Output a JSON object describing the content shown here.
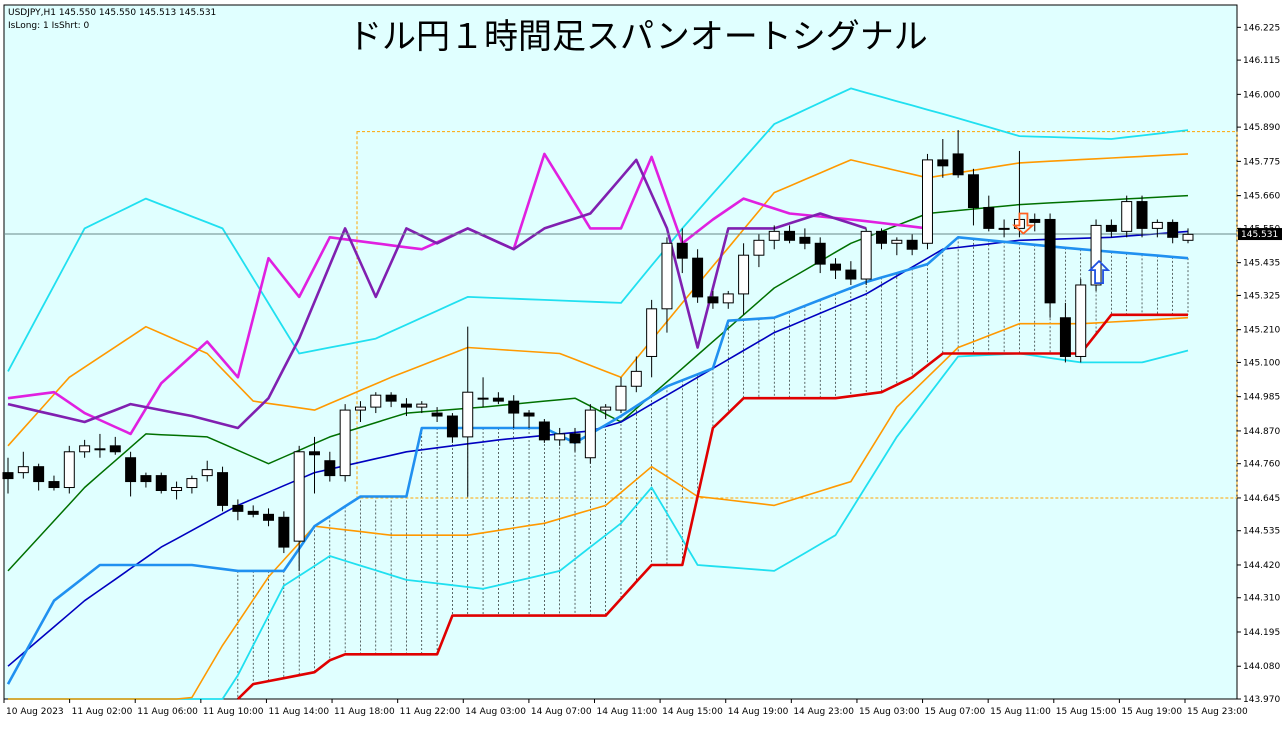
{
  "header": {
    "symbol_line": "USDJPY,H1  145.550 145.550 145.513 145.531",
    "indicator_line": "IsLong: 1 IsShrt: 0"
  },
  "title": "ドル円１時間足スパンオートシグナル",
  "colors": {
    "background": "#e0ffff",
    "candle_up": "#ffffff",
    "candle_down": "#000000",
    "rsi_a": "#e020e0",
    "rsi_b": "#8020b0",
    "bb_outer": "#20e0f0",
    "bb_mid": "#ff9900",
    "ma_green": "#007000",
    "ma_blue": "#0000c0",
    "line_light_blue": "#2090f0",
    "stop_red": "#e00000",
    "box_orange": "#ffa500",
    "arrow_down": "#ff6020",
    "arrow_up": "#2050e0"
  },
  "chart_data": {
    "type": "candlestick",
    "symbol": "USDJPY",
    "timeframe": "H1",
    "current_price": "145.531",
    "current_price_value": 145.531,
    "ylim": [
      143.97,
      146.3
    ],
    "y_ticks": [
      "146.225",
      "146.115",
      "146.000",
      "145.890",
      "145.775",
      "145.660",
      "145.550",
      "145.435",
      "145.325",
      "145.210",
      "145.100",
      "144.985",
      "144.870",
      "144.760",
      "144.645",
      "144.535",
      "144.420",
      "144.310",
      "144.195",
      "144.080",
      "143.970"
    ],
    "x_ticks": [
      "10 Aug 2023",
      "11 Aug 02:00",
      "11 Aug 06:00",
      "11 Aug 10:00",
      "11 Aug 14:00",
      "11 Aug 18:00",
      "11 Aug 22:00",
      "14 Aug 03:00",
      "14 Aug 07:00",
      "14 Aug 11:00",
      "14 Aug 15:00",
      "14 Aug 19:00",
      "14 Aug 23:00",
      "15 Aug 03:00",
      "15 Aug 07:00",
      "15 Aug 11:00",
      "15 Aug 15:00",
      "15 Aug 19:00",
      "15 Aug 23:00"
    ],
    "candles": [
      [
        144.73,
        144.78,
        144.66,
        144.71
      ],
      [
        144.73,
        144.8,
        144.71,
        144.75
      ],
      [
        144.75,
        144.76,
        144.67,
        144.7
      ],
      [
        144.7,
        144.72,
        144.67,
        144.68
      ],
      [
        144.68,
        144.82,
        144.66,
        144.8
      ],
      [
        144.8,
        144.84,
        144.78,
        144.82
      ],
      [
        144.81,
        144.86,
        144.78,
        144.81
      ],
      [
        144.82,
        144.85,
        144.79,
        144.8
      ],
      [
        144.78,
        144.8,
        144.65,
        144.7
      ],
      [
        144.72,
        144.73,
        144.68,
        144.7
      ],
      [
        144.72,
        144.73,
        144.66,
        144.67
      ],
      [
        144.67,
        144.7,
        144.64,
        144.68
      ],
      [
        144.68,
        144.72,
        144.66,
        144.71
      ],
      [
        144.72,
        144.77,
        144.7,
        144.74
      ],
      [
        144.73,
        144.75,
        144.6,
        144.62
      ],
      [
        144.62,
        144.64,
        144.57,
        144.6
      ],
      [
        144.6,
        144.62,
        144.58,
        144.59
      ],
      [
        144.59,
        144.61,
        144.55,
        144.57
      ],
      [
        144.58,
        144.6,
        144.46,
        144.48
      ],
      [
        144.5,
        144.82,
        144.4,
        144.8
      ],
      [
        144.8,
        144.85,
        144.66,
        144.79
      ],
      [
        144.77,
        144.8,
        144.7,
        144.72
      ],
      [
        144.72,
        144.96,
        144.7,
        144.94
      ],
      [
        144.94,
        144.97,
        144.9,
        144.95
      ],
      [
        144.95,
        145.0,
        144.93,
        144.99
      ],
      [
        144.99,
        145.0,
        144.95,
        144.97
      ],
      [
        144.96,
        144.98,
        144.92,
        144.95
      ],
      [
        144.95,
        144.97,
        144.93,
        144.96
      ],
      [
        144.93,
        144.95,
        144.9,
        144.92
      ],
      [
        144.92,
        144.93,
        144.83,
        144.85
      ],
      [
        144.85,
        145.22,
        144.65,
        145.0
      ],
      [
        144.98,
        145.05,
        144.95,
        144.98
      ],
      [
        144.98,
        145.0,
        144.96,
        144.97
      ],
      [
        144.97,
        144.99,
        144.88,
        144.93
      ],
      [
        144.93,
        144.94,
        144.88,
        144.92
      ],
      [
        144.9,
        144.91,
        144.83,
        144.84
      ],
      [
        144.84,
        144.88,
        144.82,
        144.86
      ],
      [
        144.86,
        144.88,
        144.8,
        144.83
      ],
      [
        144.78,
        144.96,
        144.76,
        144.94
      ],
      [
        144.94,
        144.96,
        144.91,
        144.95
      ],
      [
        144.94,
        145.05,
        144.93,
        145.02
      ],
      [
        145.02,
        145.12,
        145.0,
        145.07
      ],
      [
        145.12,
        145.31,
        145.05,
        145.28
      ],
      [
        145.28,
        145.52,
        145.2,
        145.5
      ],
      [
        145.5,
        145.55,
        145.4,
        145.45
      ],
      [
        145.45,
        145.48,
        145.3,
        145.32
      ],
      [
        145.32,
        145.34,
        145.28,
        145.3
      ],
      [
        145.3,
        145.34,
        145.28,
        145.33
      ],
      [
        145.33,
        145.5,
        145.26,
        145.46
      ],
      [
        145.46,
        145.53,
        145.42,
        145.51
      ],
      [
        145.51,
        145.56,
        145.48,
        145.54
      ],
      [
        145.54,
        145.56,
        145.5,
        145.51
      ],
      [
        145.52,
        145.55,
        145.48,
        145.5
      ],
      [
        145.5,
        145.52,
        145.4,
        145.43
      ],
      [
        145.43,
        145.45,
        145.38,
        145.41
      ],
      [
        145.41,
        145.44,
        145.36,
        145.38
      ],
      [
        145.38,
        145.55,
        145.36,
        145.54
      ],
      [
        145.54,
        145.55,
        145.48,
        145.5
      ],
      [
        145.5,
        145.52,
        145.46,
        145.51
      ],
      [
        145.51,
        145.53,
        145.46,
        145.48
      ],
      [
        145.5,
        145.8,
        145.48,
        145.78
      ],
      [
        145.78,
        145.85,
        145.72,
        145.76
      ],
      [
        145.8,
        145.88,
        145.72,
        145.73
      ],
      [
        145.73,
        145.75,
        145.56,
        145.62
      ],
      [
        145.62,
        145.66,
        145.54,
        145.55
      ],
      [
        145.55,
        145.58,
        145.52,
        145.55
      ],
      [
        145.55,
        145.81,
        145.52,
        145.58
      ],
      [
        145.58,
        145.6,
        145.54,
        145.57
      ],
      [
        145.58,
        145.6,
        145.25,
        145.3
      ],
      [
        145.25,
        145.3,
        145.1,
        145.12
      ],
      [
        145.12,
        145.38,
        145.1,
        145.36
      ],
      [
        145.36,
        145.58,
        145.34,
        145.56
      ],
      [
        145.56,
        145.58,
        145.52,
        145.54
      ],
      [
        145.54,
        145.66,
        145.52,
        145.64
      ],
      [
        145.64,
        145.66,
        145.52,
        145.55
      ],
      [
        145.55,
        145.58,
        145.52,
        145.57
      ],
      [
        145.57,
        145.58,
        145.5,
        145.52
      ],
      [
        145.51,
        145.55,
        145.5,
        145.53
      ]
    ],
    "overlay_colors": [
      "rsi_a",
      "rsi_b",
      "bb_outer",
      "bb_mid",
      "ma_green",
      "ma_blue",
      "line_light_blue",
      "stop_red"
    ]
  }
}
